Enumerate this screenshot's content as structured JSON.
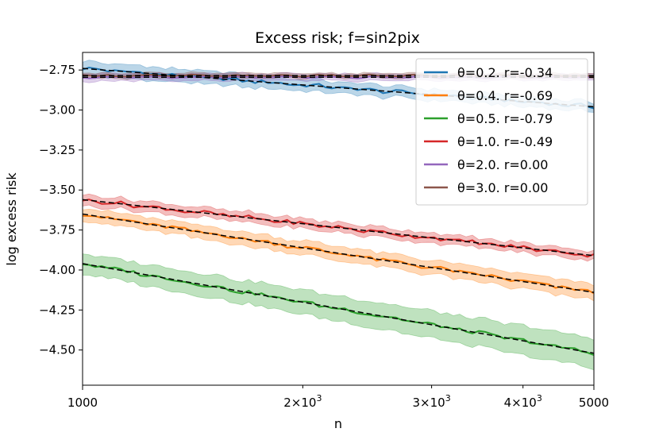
{
  "chart_data": {
    "type": "line",
    "title": "Excess risk;  f=sin2pix",
    "xlabel": "n",
    "ylabel": "log excess risk",
    "xscale": "log",
    "xlim": [
      1000,
      5000
    ],
    "ylim": [
      -4.72,
      -2.64
    ],
    "xticks": [
      {
        "value": 1000,
        "label": "1000",
        "major": true
      },
      {
        "value": 2000,
        "label": "2×10",
        "sup": "3",
        "major": false
      },
      {
        "value": 3000,
        "label": "3×10",
        "sup": "3",
        "major": false
      },
      {
        "value": 4000,
        "label": "4×10",
        "sup": "3",
        "major": false
      },
      {
        "value": 5000,
        "label": "5000",
        "major": true
      }
    ],
    "yticks": [
      {
        "value": -2.75,
        "label": "−2.75"
      },
      {
        "value": -3.0,
        "label": "−3.00"
      },
      {
        "value": -3.25,
        "label": "−3.25"
      },
      {
        "value": -3.5,
        "label": "−3.50"
      },
      {
        "value": -3.75,
        "label": "−3.75"
      },
      {
        "value": -4.0,
        "label": "−4.00"
      },
      {
        "value": -4.25,
        "label": "−4.25"
      },
      {
        "value": -4.5,
        "label": "−4.50"
      }
    ],
    "grid": false,
    "legend_position": "top-right",
    "fit_line_color": "#000000",
    "series": [
      {
        "name": "θ=0.2. r=-0.34",
        "color": "#1f77b4",
        "y_start": -2.74,
        "y_end": -2.98,
        "band_start": 0.04,
        "band_end": 0.025
      },
      {
        "name": "θ=0.4. r=-0.69",
        "color": "#ff7f0e",
        "y_start": -3.65,
        "y_end": -4.14,
        "band_start": 0.035,
        "band_end": 0.045
      },
      {
        "name": "θ=0.5. r=-0.79",
        "color": "#2ca02c",
        "y_start": -3.96,
        "y_end": -4.52,
        "band_start": 0.06,
        "band_end": 0.09
      },
      {
        "name": "θ=1.0. r=-0.49",
        "color": "#d62728",
        "y_start": -3.56,
        "y_end": -3.91,
        "band_start": 0.03,
        "band_end": 0.025
      },
      {
        "name": "θ=2.0. r=0.00",
        "color": "#9467bd",
        "y_start": -2.795,
        "y_end": -2.795,
        "band_start": 0.02,
        "band_end": 0.015
      },
      {
        "name": "θ=3.0. r=0.00",
        "color": "#8c564b",
        "y_start": -2.785,
        "y_end": -2.785,
        "band_start": 0.012,
        "band_end": 0.01
      }
    ]
  }
}
